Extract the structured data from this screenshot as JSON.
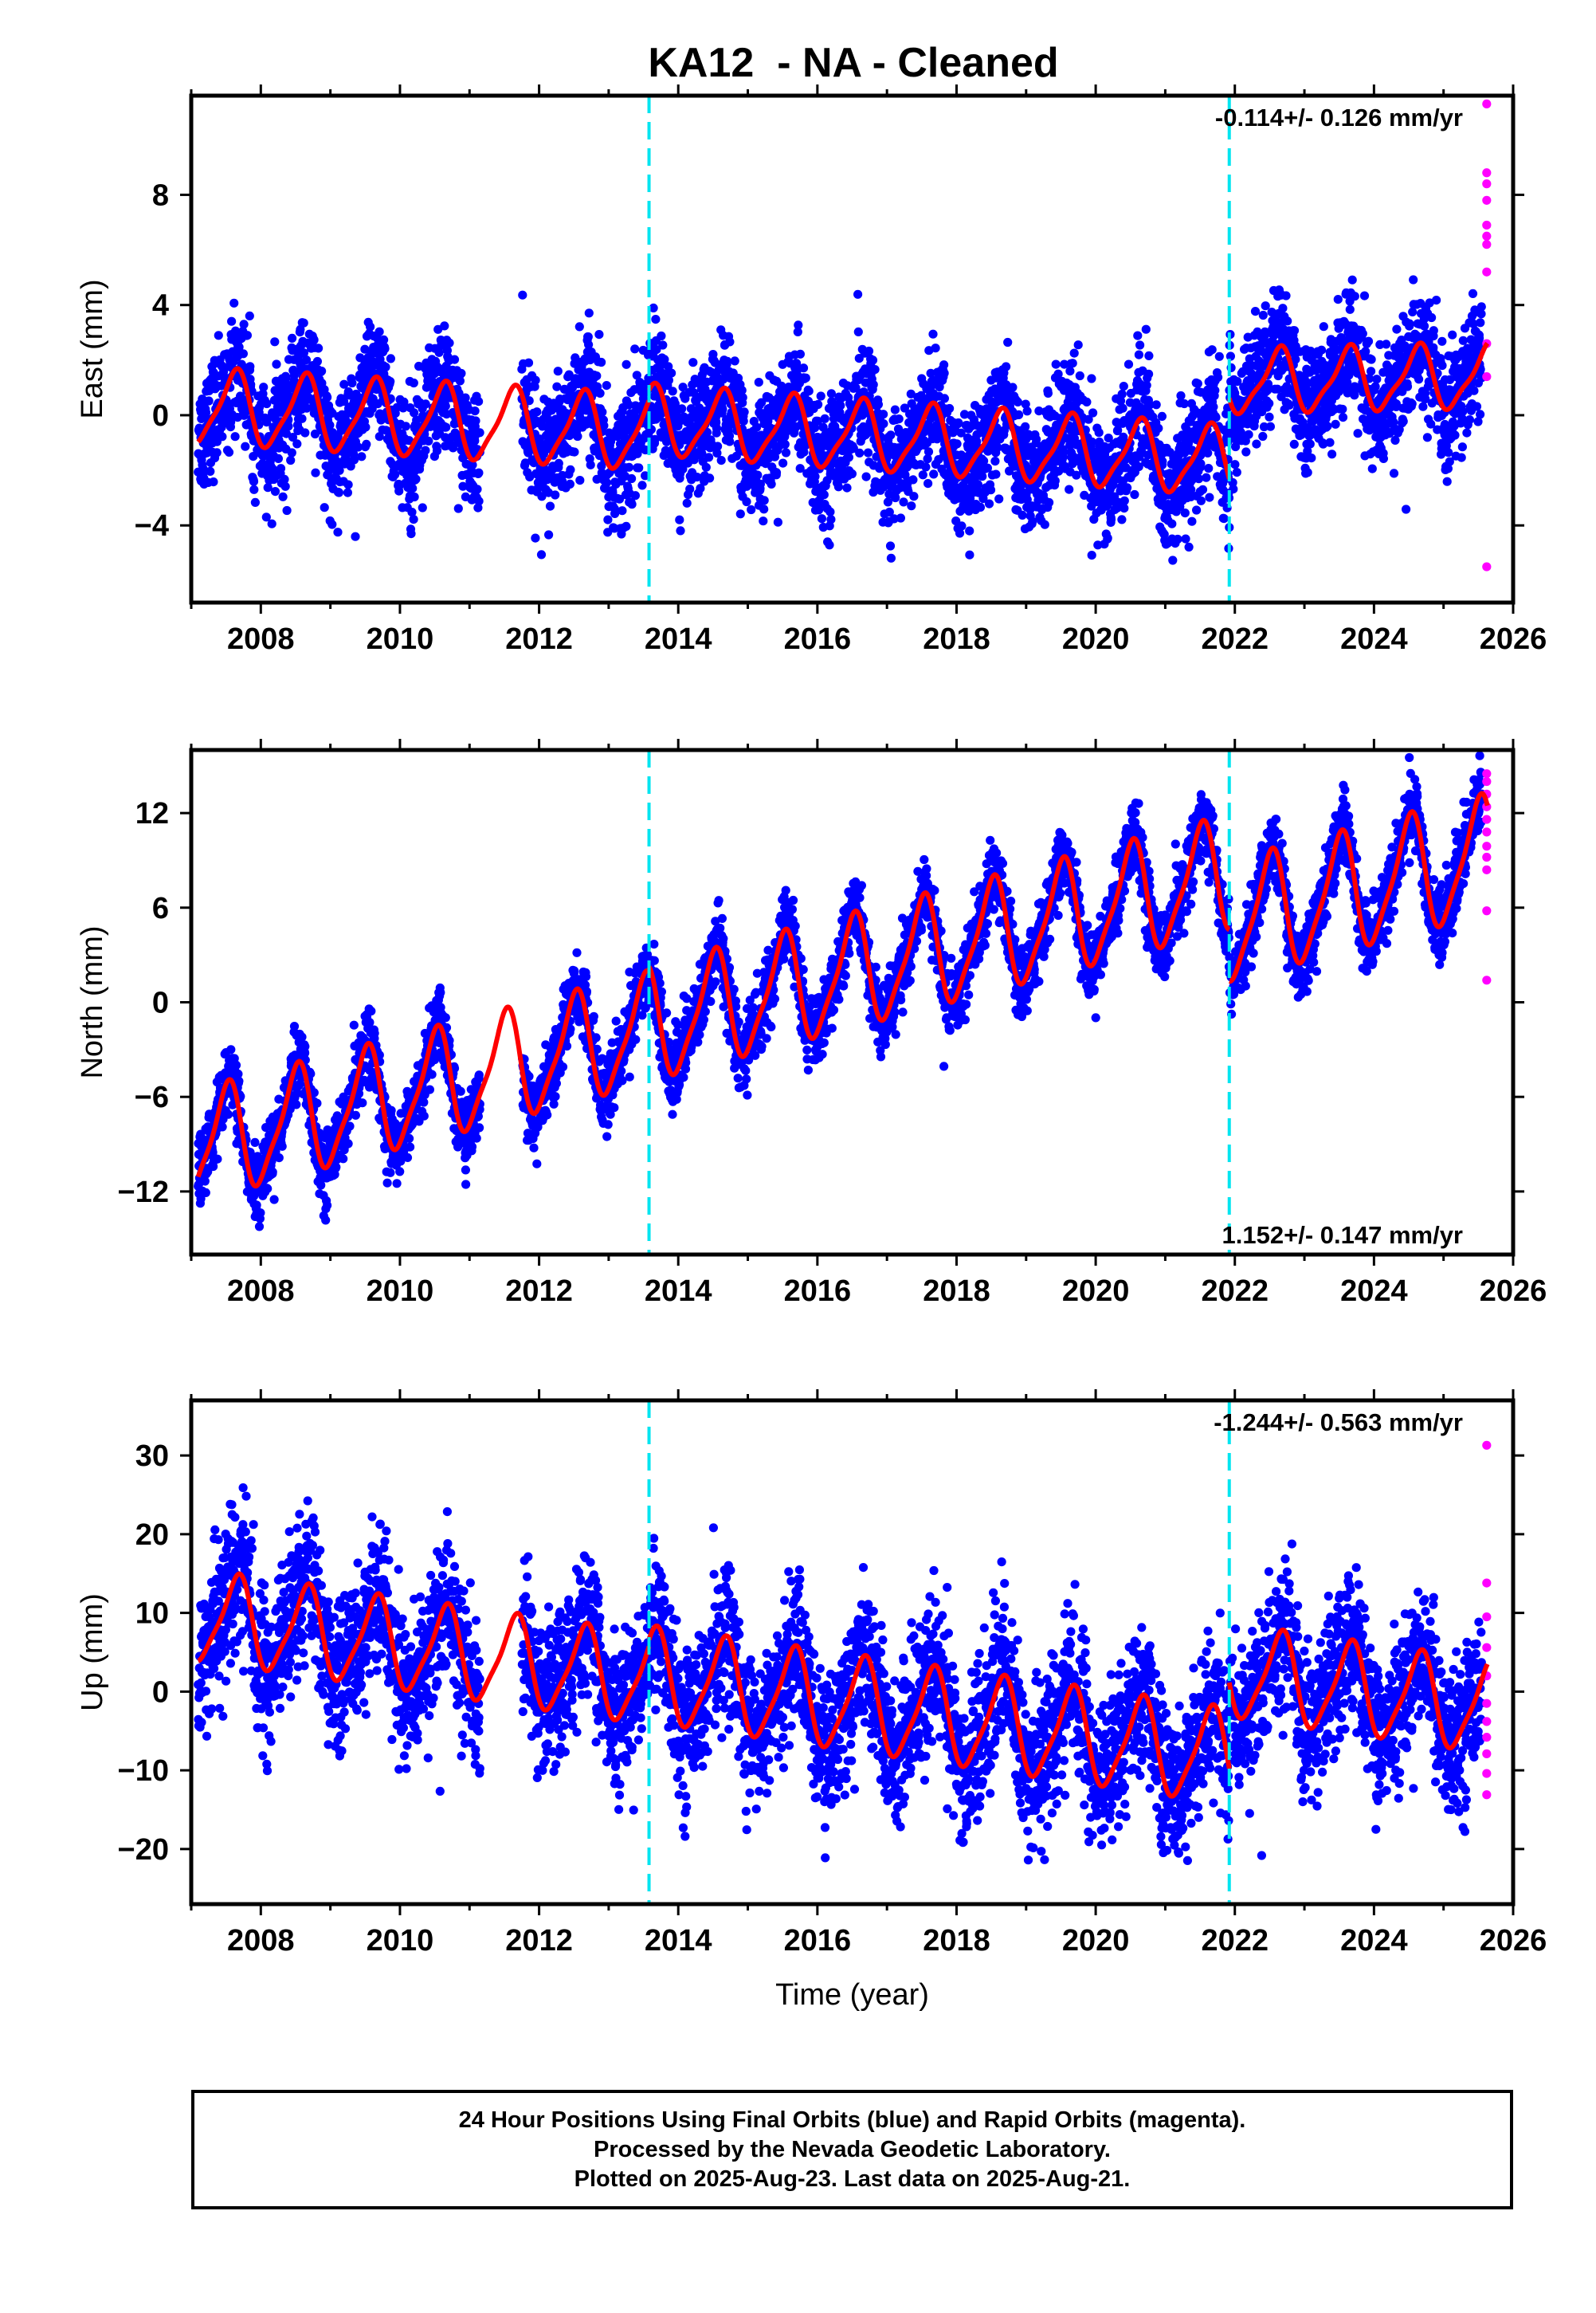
{
  "title": "KA12  - NA - Cleaned",
  "footer": {
    "line1": "24 Hour Positions Using Final Orbits (blue) and Rapid Orbits (magenta).",
    "line2": "Processed by the Nevada Geodetic Laboratory.",
    "line3": "Plotted on 2025-Aug-23. Last data on 2025-Aug-21."
  },
  "colors": {
    "final_orbits": "#0000ff",
    "rapid_orbits": "#ff00ff",
    "model": "#ff0000",
    "event_lines": "#00e5f0"
  },
  "chart_data": [
    {
      "type": "scatter",
      "component": "East",
      "ylabel": "East (mm)",
      "xlabel": "",
      "xlim": [
        2007.0,
        2026.0
      ],
      "ylim": [
        -6.8,
        11.6
      ],
      "yticks": [
        -4,
        0,
        4,
        8
      ],
      "xticks": [
        2008,
        2010,
        2012,
        2014,
        2016,
        2018,
        2020,
        2022,
        2024,
        2026
      ],
      "velocity_label": "-0.114+/- 0.126 mm/yr",
      "label_position": "top-right",
      "event_lines": [
        2013.58,
        2021.92
      ],
      "data_span": [
        2007.1,
        2025.55
      ],
      "model": {
        "segments": [
          {
            "start": 2007.1,
            "end": 2013.58,
            "offset": 0.3,
            "trend": -0.15,
            "annual_amp": 1.3,
            "annual_phase": 0.62,
            "semi_amp": 0.3
          },
          {
            "start": 2013.58,
            "end": 2021.92,
            "offset": -0.2,
            "trend": -0.18,
            "annual_amp": 1.2,
            "annual_phase": 0.62,
            "semi_amp": 0.3
          },
          {
            "start": 2021.92,
            "end": 2025.63,
            "offset": 1.2,
            "trend": 0.05,
            "annual_amp": 1.1,
            "annual_phase": 0.62,
            "semi_amp": 0.3
          }
        ],
        "scatter_sd": 1.05
      },
      "rapid_points": [
        {
          "x": 2025.62,
          "y": 11.3
        },
        {
          "x": 2025.62,
          "y": 8.8
        },
        {
          "x": 2025.62,
          "y": 8.4
        },
        {
          "x": 2025.62,
          "y": 7.8
        },
        {
          "x": 2025.62,
          "y": 6.9
        },
        {
          "x": 2025.62,
          "y": 6.5
        },
        {
          "x": 2025.62,
          "y": 6.2
        },
        {
          "x": 2025.62,
          "y": 5.2
        },
        {
          "x": 2025.62,
          "y": 2.6
        },
        {
          "x": 2025.62,
          "y": 1.4
        },
        {
          "x": 2025.62,
          "y": -5.5
        }
      ]
    },
    {
      "type": "scatter",
      "component": "North",
      "ylabel": "North (mm)",
      "xlabel": "",
      "xlim": [
        2007.0,
        2026.0
      ],
      "ylim": [
        -16.0,
        16.0
      ],
      "yticks": [
        -12,
        -6,
        0,
        6,
        12
      ],
      "xticks": [
        2008,
        2010,
        2012,
        2014,
        2016,
        2018,
        2020,
        2022,
        2024,
        2026
      ],
      "velocity_label": "1.152+/- 0.147 mm/yr",
      "label_position": "bottom-right",
      "event_lines": [
        2013.58,
        2021.92
      ],
      "data_span": [
        2007.1,
        2025.55
      ],
      "model": {
        "segments": [
          {
            "start": 2007.1,
            "end": 2013.58,
            "offset": -9.2,
            "trend": 1.15,
            "annual_amp": 3.3,
            "annual_phase": 0.5,
            "semi_amp": 0.8
          },
          {
            "start": 2013.58,
            "end": 2021.92,
            "offset": -1.5,
            "trend": 1.15,
            "annual_amp": 3.4,
            "annual_phase": 0.5,
            "semi_amp": 0.8
          },
          {
            "start": 2021.92,
            "end": 2025.63,
            "offset": 5.0,
            "trend": 1.15,
            "annual_amp": 3.6,
            "annual_phase": 0.5,
            "semi_amp": 0.8
          }
        ],
        "scatter_sd": 1.1
      },
      "rapid_points": [
        {
          "x": 2025.62,
          "y": 14.5
        },
        {
          "x": 2025.62,
          "y": 14.0
        },
        {
          "x": 2025.62,
          "y": 13.2
        },
        {
          "x": 2025.62,
          "y": 12.4
        },
        {
          "x": 2025.62,
          "y": 11.6
        },
        {
          "x": 2025.62,
          "y": 10.8
        },
        {
          "x": 2025.62,
          "y": 9.9
        },
        {
          "x": 2025.62,
          "y": 9.2
        },
        {
          "x": 2025.62,
          "y": 8.4
        },
        {
          "x": 2025.62,
          "y": 5.8
        },
        {
          "x": 2025.62,
          "y": 1.4
        }
      ]
    },
    {
      "type": "scatter",
      "component": "Up",
      "ylabel": "Up (mm)",
      "xlabel": "Time (year)",
      "xlim": [
        2007.0,
        2026.0
      ],
      "ylim": [
        -27.0,
        37.0
      ],
      "yticks": [
        -20,
        -10,
        0,
        10,
        20,
        30
      ],
      "xticks": [
        2008,
        2010,
        2012,
        2014,
        2016,
        2018,
        2020,
        2022,
        2024,
        2026
      ],
      "velocity_label": "-1.244+/- 0.563 mm/yr",
      "label_position": "top-right",
      "event_lines": [
        2013.58,
        2021.92
      ],
      "data_span": [
        2007.1,
        2025.55
      ],
      "model": {
        "segments": [
          {
            "start": 2007.1,
            "end": 2013.58,
            "offset": 9.5,
            "trend": -1.25,
            "annual_amp": 5.5,
            "annual_phase": 0.65,
            "semi_amp": 1.2
          },
          {
            "start": 2013.58,
            "end": 2021.92,
            "offset": 2.0,
            "trend": -1.25,
            "annual_amp": 5.8,
            "annual_phase": 0.65,
            "semi_amp": 1.2
          },
          {
            "start": 2021.92,
            "end": 2025.63,
            "offset": 2.5,
            "trend": -1.25,
            "annual_amp": 5.6,
            "annual_phase": 0.65,
            "semi_amp": 1.2
          }
        ],
        "scatter_sd": 4.6
      },
      "rapid_points": [
        {
          "x": 2025.62,
          "y": 31.3
        },
        {
          "x": 2025.62,
          "y": 13.8
        },
        {
          "x": 2025.62,
          "y": 9.5
        },
        {
          "x": 2025.62,
          "y": 5.6
        },
        {
          "x": 2025.62,
          "y": 2.0
        },
        {
          "x": 2025.62,
          "y": -1.5
        },
        {
          "x": 2025.62,
          "y": -3.8
        },
        {
          "x": 2025.62,
          "y": -5.8
        },
        {
          "x": 2025.62,
          "y": -7.9
        },
        {
          "x": 2025.62,
          "y": -10.4
        },
        {
          "x": 2025.62,
          "y": -13.1
        }
      ]
    }
  ]
}
